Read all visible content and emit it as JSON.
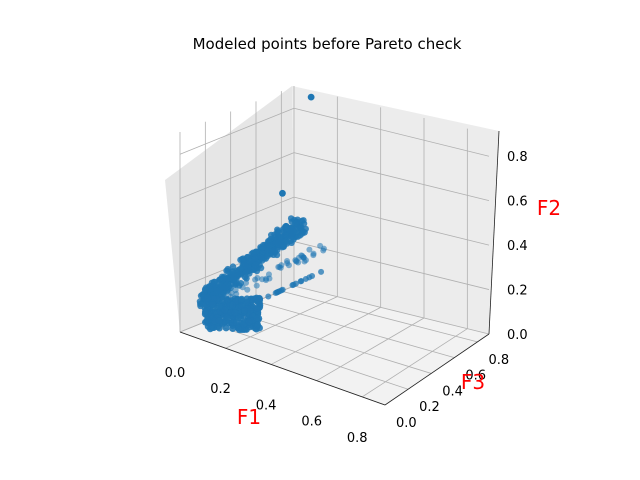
{
  "chart_data": {
    "type": "scatter",
    "projection": "3d",
    "title": "Modeled points before Pareto check",
    "xlabel": "F1",
    "ylabel": "F3",
    "zlabel": "F2",
    "label_color": "#ff0000",
    "point_color": "#1f77b4",
    "pane_color": "#f2f2f2",
    "grid": true,
    "xlim": [
      0,
      0.9
    ],
    "ylim": [
      0,
      0.9
    ],
    "zlim": [
      0,
      0.9
    ],
    "xticks": [
      "0.0",
      "0.2",
      "0.4",
      "0.6",
      "0.8"
    ],
    "yticks": [
      "0.0",
      "0.2",
      "0.4",
      "0.6",
      "0.8"
    ],
    "zticks": [
      "0.0",
      "0.2",
      "0.4",
      "0.6",
      "0.8"
    ],
    "series": [
      {
        "points": [
          [
            0.12,
            0.6,
            0.52
          ],
          [
            0.05,
            0.95,
            0.85
          ]
        ]
      }
    ]
  }
}
